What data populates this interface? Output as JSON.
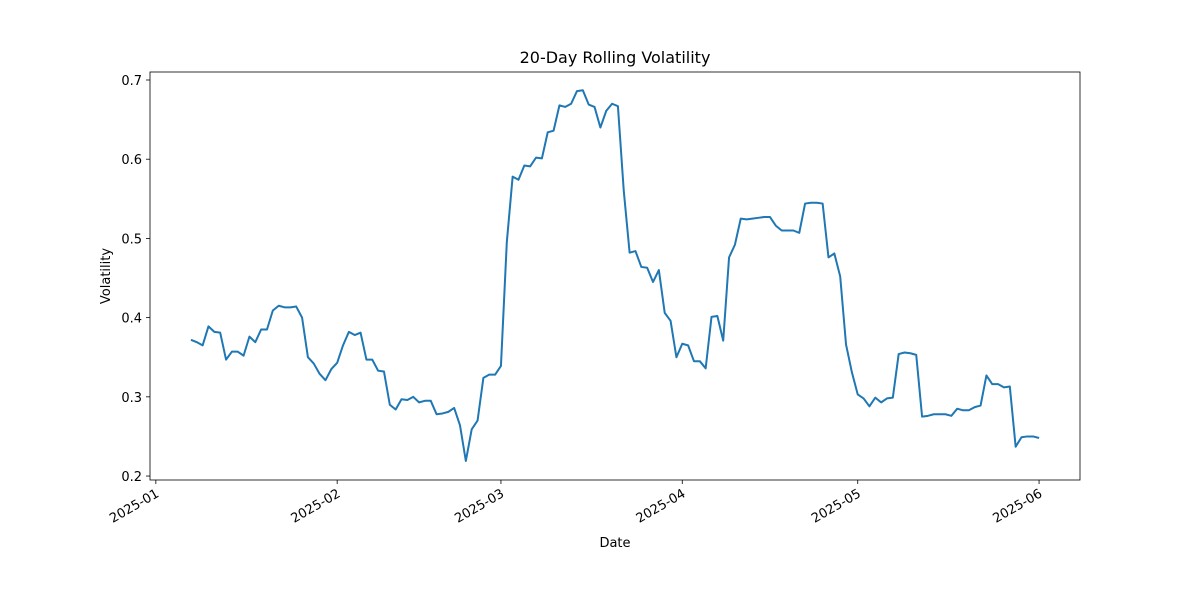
{
  "chart_data": {
    "type": "line",
    "title": "20-Day Rolling Volatility",
    "x_label": "Date",
    "y_label": "Volatility",
    "x": [
      "2025-01-07",
      "2025-01-08",
      "2025-01-09",
      "2025-01-10",
      "2025-01-11",
      "2025-01-12",
      "2025-01-13",
      "2025-01-14",
      "2025-01-15",
      "2025-01-16",
      "2025-01-17",
      "2025-01-18",
      "2025-01-19",
      "2025-01-20",
      "2025-01-21",
      "2025-01-22",
      "2025-01-23",
      "2025-01-24",
      "2025-01-25",
      "2025-01-26",
      "2025-01-27",
      "2025-01-28",
      "2025-01-29",
      "2025-01-30",
      "2025-01-31",
      "2025-02-01",
      "2025-02-02",
      "2025-02-03",
      "2025-02-04",
      "2025-02-05",
      "2025-02-06",
      "2025-02-07",
      "2025-02-08",
      "2025-02-09",
      "2025-02-10",
      "2025-02-11",
      "2025-02-12",
      "2025-02-13",
      "2025-02-14",
      "2025-02-15",
      "2025-02-16",
      "2025-02-17",
      "2025-02-18",
      "2025-02-19",
      "2025-02-20",
      "2025-02-21",
      "2025-02-22",
      "2025-02-23",
      "2025-02-24",
      "2025-02-25",
      "2025-02-26",
      "2025-02-27",
      "2025-02-28",
      "2025-03-01",
      "2025-03-02",
      "2025-03-03",
      "2025-03-04",
      "2025-03-05",
      "2025-03-06",
      "2025-03-07",
      "2025-03-08",
      "2025-03-09",
      "2025-03-10",
      "2025-03-11",
      "2025-03-12",
      "2025-03-13",
      "2025-03-14",
      "2025-03-15",
      "2025-03-16",
      "2025-03-17",
      "2025-03-18",
      "2025-03-19",
      "2025-03-20",
      "2025-03-21",
      "2025-03-22",
      "2025-03-23",
      "2025-03-24",
      "2025-03-25",
      "2025-03-26",
      "2025-03-27",
      "2025-03-28",
      "2025-03-29",
      "2025-03-30",
      "2025-03-31",
      "2025-04-01",
      "2025-04-02",
      "2025-04-03",
      "2025-04-04",
      "2025-04-05",
      "2025-04-06",
      "2025-04-07",
      "2025-04-08",
      "2025-04-09",
      "2025-04-10",
      "2025-04-11",
      "2025-04-12",
      "2025-04-13",
      "2025-04-14",
      "2025-04-15",
      "2025-04-16",
      "2025-04-17",
      "2025-04-18",
      "2025-04-19",
      "2025-04-20",
      "2025-04-21",
      "2025-04-22",
      "2025-04-23",
      "2025-04-24",
      "2025-04-25",
      "2025-04-26",
      "2025-04-27",
      "2025-04-28",
      "2025-04-29",
      "2025-04-30",
      "2025-05-01",
      "2025-05-02",
      "2025-05-03",
      "2025-05-04",
      "2025-05-05",
      "2025-05-06",
      "2025-05-07",
      "2025-05-08",
      "2025-05-09",
      "2025-05-10",
      "2025-05-11",
      "2025-05-12",
      "2025-05-13",
      "2025-05-14",
      "2025-05-15",
      "2025-05-16",
      "2025-05-17",
      "2025-05-18",
      "2025-05-19",
      "2025-05-20",
      "2025-05-21",
      "2025-05-22",
      "2025-05-23",
      "2025-05-24",
      "2025-05-25",
      "2025-05-26",
      "2025-05-27",
      "2025-05-28",
      "2025-05-29",
      "2025-05-30",
      "2025-05-31",
      "2025-06-01"
    ],
    "series": [
      {
        "name": "Volatility",
        "color": "#1f77b4",
        "values": [
          0.372,
          0.369,
          0.365,
          0.389,
          0.382,
          0.381,
          0.347,
          0.357,
          0.357,
          0.352,
          0.376,
          0.369,
          0.385,
          0.385,
          0.409,
          0.415,
          0.413,
          0.413,
          0.414,
          0.4,
          0.35,
          0.342,
          0.329,
          0.321,
          0.335,
          0.343,
          0.365,
          0.382,
          0.378,
          0.381,
          0.347,
          0.347,
          0.333,
          0.332,
          0.29,
          0.284,
          0.297,
          0.296,
          0.3,
          0.293,
          0.295,
          0.295,
          0.278,
          0.279,
          0.281,
          0.286,
          0.264,
          0.219,
          0.259,
          0.27,
          0.324,
          0.328,
          0.328,
          0.339,
          0.495,
          0.578,
          0.574,
          0.592,
          0.591,
          0.602,
          0.601,
          0.634,
          0.636,
          0.668,
          0.666,
          0.67,
          0.686,
          0.687,
          0.669,
          0.666,
          0.64,
          0.661,
          0.67,
          0.667,
          0.56,
          0.482,
          0.484,
          0.464,
          0.463,
          0.445,
          0.46,
          0.406,
          0.396,
          0.35,
          0.367,
          0.365,
          0.345,
          0.345,
          0.336,
          0.401,
          0.402,
          0.371,
          0.476,
          0.492,
          0.525,
          0.524,
          0.525,
          0.526,
          0.527,
          0.527,
          0.516,
          0.51,
          0.51,
          0.51,
          0.507,
          0.544,
          0.545,
          0.545,
          0.544,
          0.476,
          0.481,
          0.452,
          0.366,
          0.331,
          0.303,
          0.298,
          0.288,
          0.299,
          0.293,
          0.298,
          0.299,
          0.354,
          0.356,
          0.355,
          0.353,
          0.275,
          0.276,
          0.278,
          0.278,
          0.278,
          0.276,
          0.285,
          0.283,
          0.283,
          0.287,
          0.289,
          0.327,
          0.316,
          0.316,
          0.312,
          0.313,
          0.237,
          0.249,
          0.25,
          0.25,
          0.248
        ]
      }
    ],
    "xlim": [
      "2024-12-31",
      "2025-06-08"
    ],
    "xticks": [
      {
        "value": "2025-01-01",
        "label": "2025-01"
      },
      {
        "value": "2025-02-01",
        "label": "2025-02"
      },
      {
        "value": "2025-03-01",
        "label": "2025-03"
      },
      {
        "value": "2025-04-01",
        "label": "2025-04"
      },
      {
        "value": "2025-05-01",
        "label": "2025-05"
      },
      {
        "value": "2025-06-01",
        "label": "2025-06"
      }
    ],
    "ylim": [
      0.195,
      0.7101
    ],
    "yticks": [
      0.2,
      0.3,
      0.4,
      0.5,
      0.6,
      0.7
    ],
    "grid": false
  }
}
